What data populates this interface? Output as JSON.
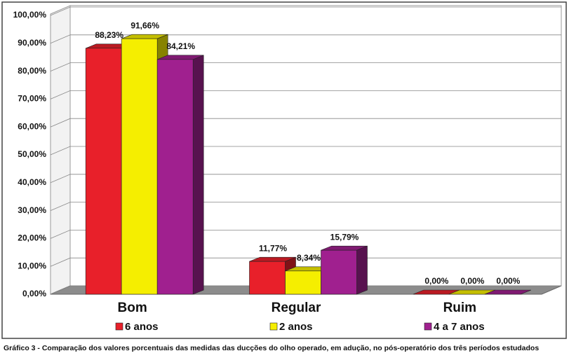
{
  "chart_data": {
    "type": "bar3d",
    "caption": "Gráfico 3 - Comparação dos valores porcentuais das medidas das ducções do olho operado, em adução, no pós-operatório dos três períodos estudados",
    "categories": [
      "Bom",
      "Regular",
      "Ruim"
    ],
    "series": [
      {
        "name": "6 anos",
        "color": "#e8202a",
        "values": [
          88.23,
          11.77,
          0
        ],
        "value_labels": [
          "88,23%",
          "11,77%",
          "0,00%"
        ]
      },
      {
        "name": "2 anos",
        "color": "#f5ee00",
        "values": [
          91.66,
          8.34,
          0
        ],
        "value_labels": [
          "91,66%",
          "8,34%",
          "0,00%"
        ]
      },
      {
        "name": "4 a 7 anos",
        "color": "#a0208f",
        "values": [
          84.21,
          15.79,
          0
        ],
        "value_labels": [
          "84,21%",
          "15,79%",
          "0,00%"
        ]
      }
    ],
    "ylim": [
      0,
      100
    ],
    "yticks": [
      {
        "value": 0,
        "label": "0,00%"
      },
      {
        "value": 10,
        "label": "10,00%"
      },
      {
        "value": 20,
        "label": "20,00%"
      },
      {
        "value": 30,
        "label": "30,00%"
      },
      {
        "value": 40,
        "label": "40,00%"
      },
      {
        "value": 50,
        "label": "50,00%"
      },
      {
        "value": 60,
        "label": "60,00%"
      },
      {
        "value": 70,
        "label": "70,00%"
      },
      {
        "value": 80,
        "label": "80,00%"
      },
      {
        "value": 90,
        "label": "90,00%"
      },
      {
        "value": 100,
        "label": "100,00%"
      }
    ],
    "grid": true
  }
}
